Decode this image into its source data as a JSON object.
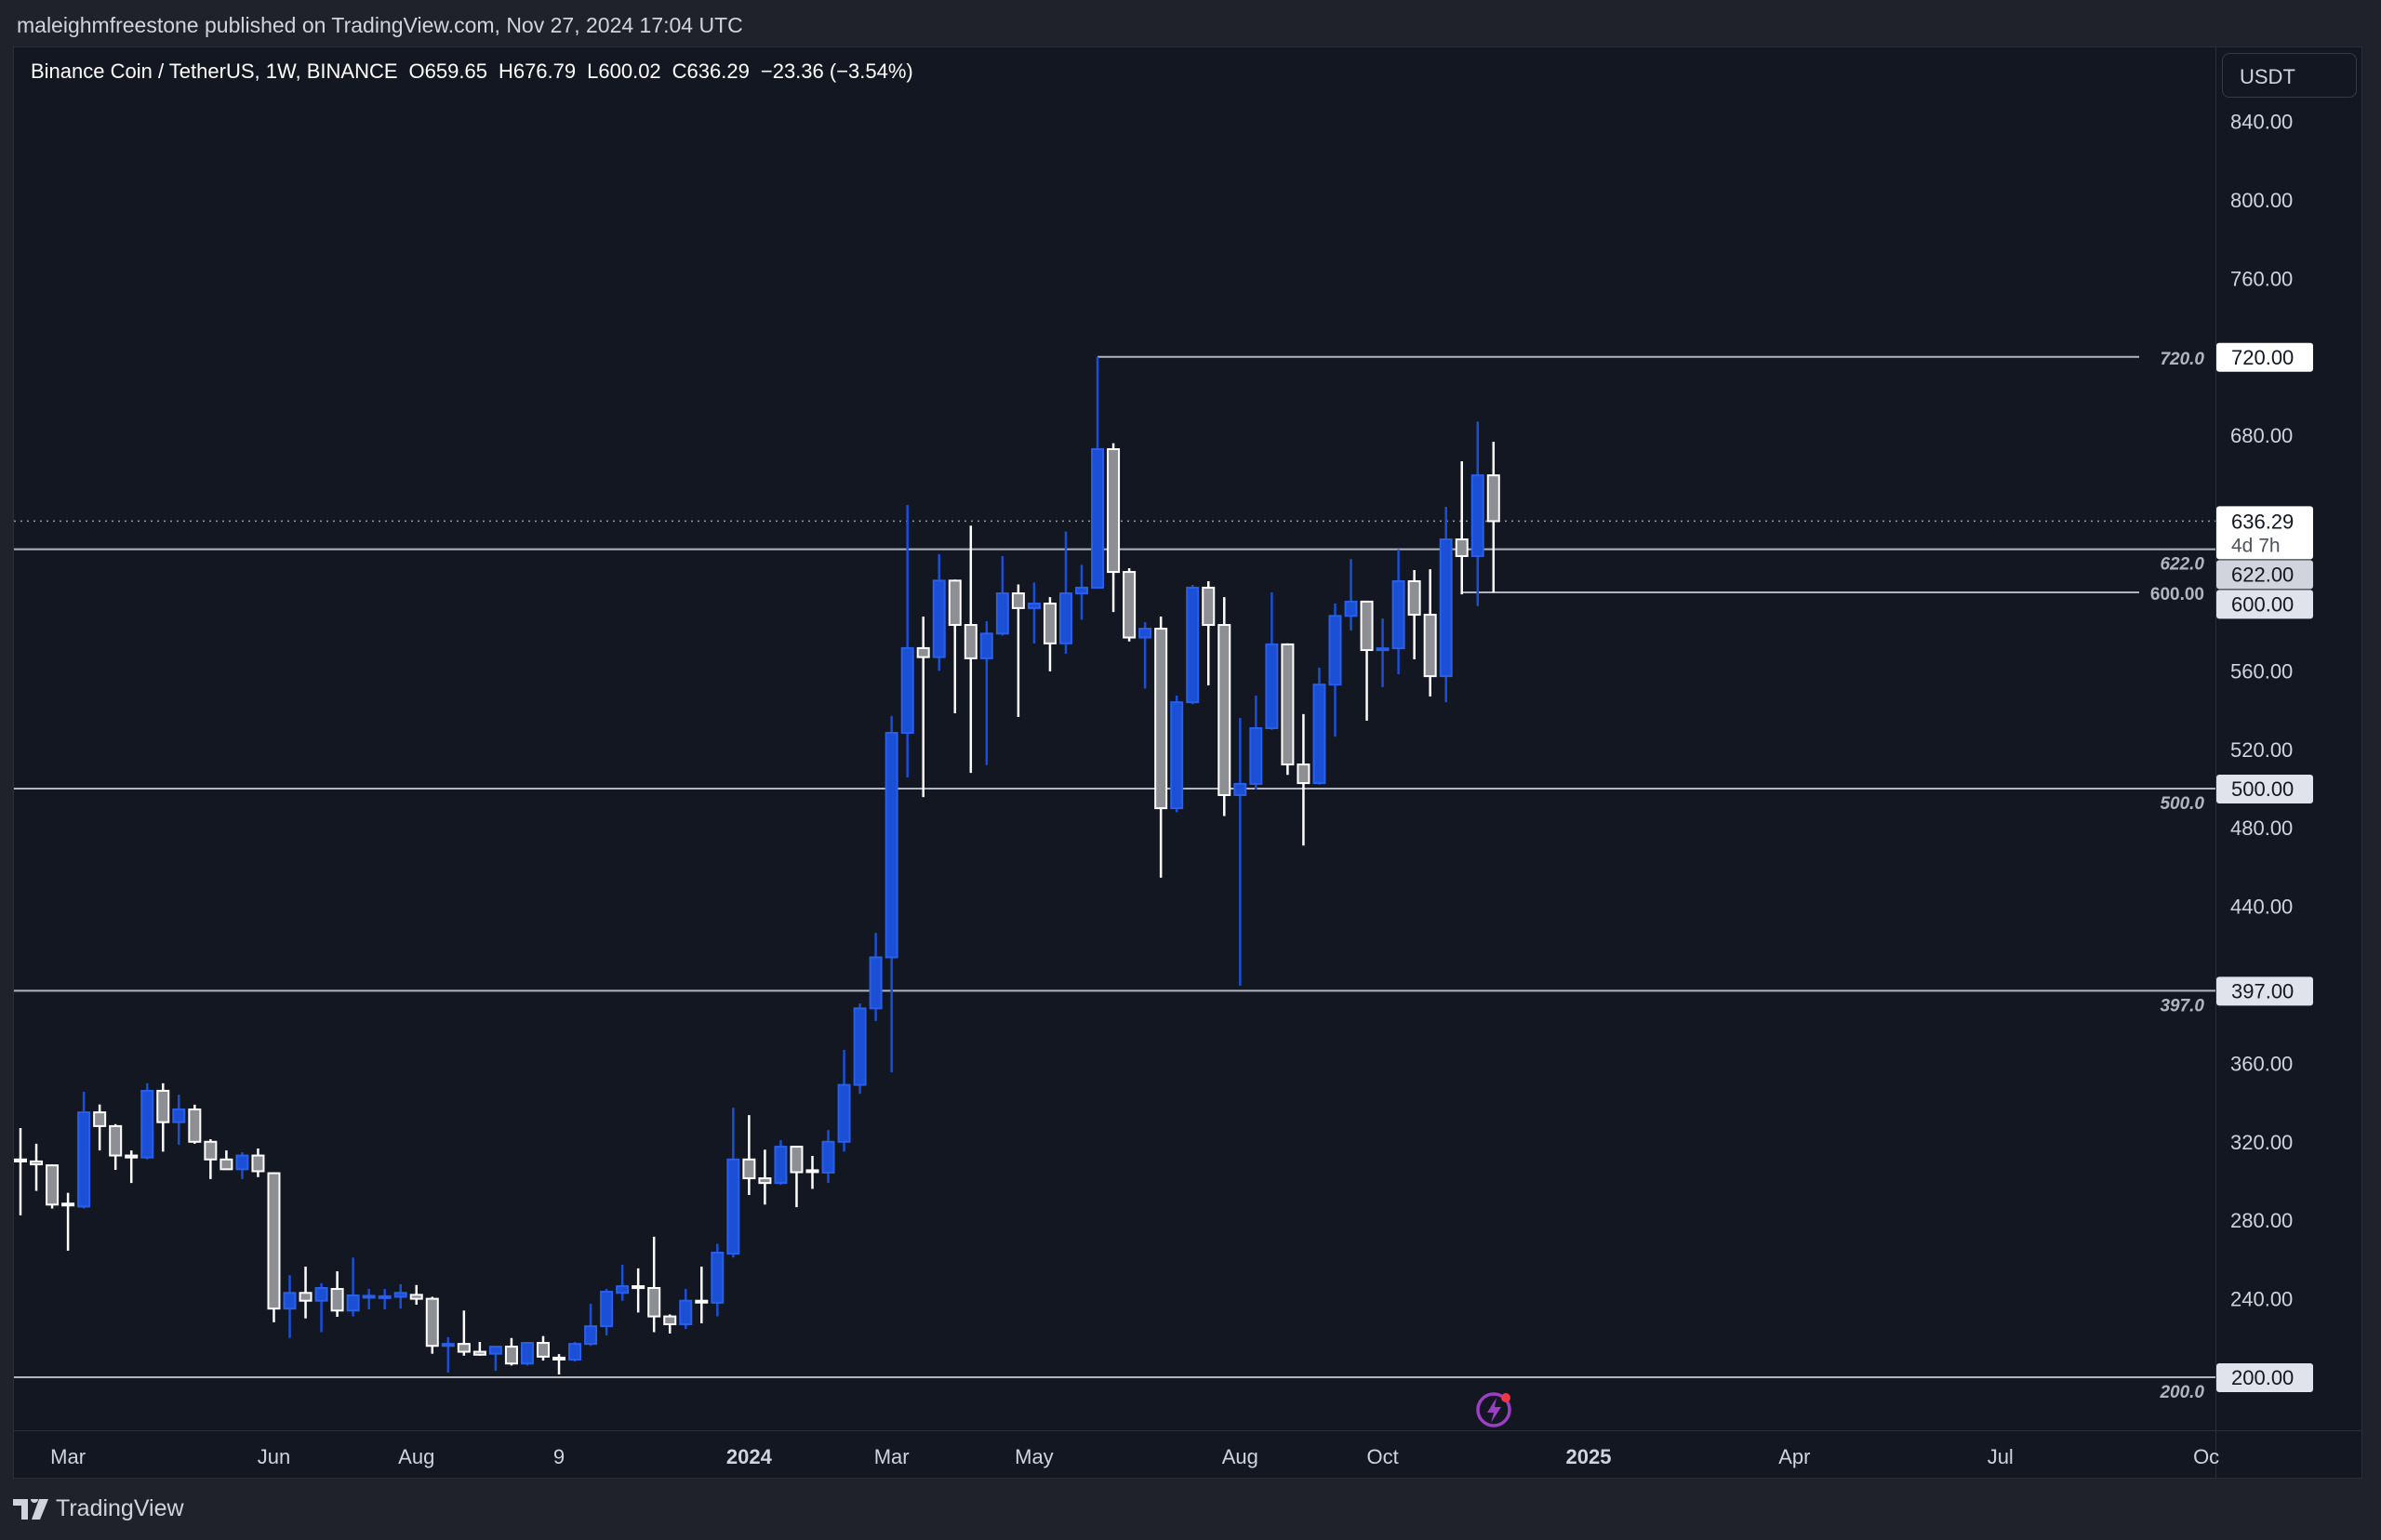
{
  "header": {
    "published": "maleighmfreestone published on TradingView.com, Nov 27, 2024 17:04 UTC"
  },
  "legend": {
    "symbol": "Binance Coin / TetherUS, 1W, BINANCE",
    "open": "O659.65",
    "high": "H676.79",
    "low": "L600.02",
    "close": "C636.29",
    "change": "−23.36 (−3.54%)"
  },
  "price_axis": {
    "currency": "USDT"
  },
  "footer": {
    "brand": "TradingView",
    "logo_icon": "tradingview-logo-icon"
  },
  "colors": {
    "up": "#1a4fd6",
    "down_fill": "#8d8f94",
    "down_stroke": "#ffffff",
    "background": "#131722",
    "level_line": "#b2b5be",
    "alert_icon": "#9c3fc4"
  },
  "icons": {
    "alert": "lightning-alert-icon"
  },
  "chart_data": {
    "type": "candlestick",
    "title": "Binance Coin / TetherUS, 1W, BINANCE",
    "interval": "1W",
    "ylim": [
      182,
      880
    ],
    "yticks": [
      "840.00",
      "800.00",
      "760.00",
      "680.00",
      "560.00",
      "520.00",
      "480.00",
      "440.00",
      "360.00",
      "320.00",
      "280.00",
      "240.00"
    ],
    "xticks": [
      {
        "label": "Mar",
        "date": "2023-03-06",
        "bold": false
      },
      {
        "label": "Jun",
        "date": "2023-06-05",
        "bold": false
      },
      {
        "label": "Aug",
        "date": "2023-08-07",
        "bold": false
      },
      {
        "label": "9",
        "date": "2023-10-09",
        "bold": false
      },
      {
        "label": "2024",
        "date": "2024-01-01",
        "bold": true
      },
      {
        "label": "Mar",
        "date": "2024-03-04",
        "bold": false
      },
      {
        "label": "May",
        "date": "2024-05-06",
        "bold": false
      },
      {
        "label": "Aug",
        "date": "2024-08-05",
        "bold": false
      },
      {
        "label": "Oct",
        "date": "2024-10-07",
        "bold": false
      },
      {
        "label": "2025",
        "date": "2025-01-06",
        "bold": true
      },
      {
        "label": "Apr",
        "date": "2025-04-07",
        "bold": false
      },
      {
        "label": "Jul",
        "date": "2025-07-07",
        "bold": false
      },
      {
        "label": "Oc",
        "date": "2025-10-06",
        "bold": false
      }
    ],
    "current_price": {
      "value": 636.29,
      "label": "636.29",
      "countdown": "4d 7h"
    },
    "levels": [
      {
        "price": 720,
        "label": "720.0",
        "badge": "720.00",
        "from": "2024-06-03",
        "style": "white"
      },
      {
        "price": 622,
        "label": "622.0",
        "badge": "622.00",
        "from": null,
        "style": "gray"
      },
      {
        "price": 600,
        "label": "600.00",
        "badge": "600.00",
        "from": "2024-11-11",
        "style": "light"
      },
      {
        "price": 500,
        "label": "500.0",
        "badge": "500.00",
        "from": null,
        "style": "light"
      },
      {
        "price": 397,
        "label": "397.0",
        "badge": "397.00",
        "from": null,
        "style": "light"
      },
      {
        "price": 200,
        "label": "200.0",
        "badge": "200.00",
        "from": null,
        "style": "light"
      }
    ],
    "columns": [
      "date",
      "open",
      "high",
      "low",
      "close"
    ],
    "candles": [
      [
        "2023-02-13",
        311,
        327,
        282.5,
        310
      ],
      [
        "2023-02-20",
        310,
        319,
        295,
        308.5
      ],
      [
        "2023-02-27",
        308,
        308.5,
        286,
        288
      ],
      [
        "2023-03-06",
        288.5,
        294,
        264.5,
        288
      ],
      [
        "2023-03-13",
        287,
        345.5,
        286,
        335
      ],
      [
        "2023-03-20",
        335,
        339,
        315.6,
        328
      ],
      [
        "2023-03-27",
        328,
        329,
        305.7,
        313
      ],
      [
        "2023-04-03",
        313,
        315.6,
        299,
        312
      ],
      [
        "2023-04-10",
        312,
        349.8,
        311,
        346
      ],
      [
        "2023-04-17",
        346,
        349.8,
        315,
        330
      ],
      [
        "2023-04-24",
        330,
        344,
        318.5,
        336.5
      ],
      [
        "2023-05-01",
        336.5,
        338.9,
        319,
        320
      ],
      [
        "2023-05-08",
        320,
        321.3,
        301,
        311
      ],
      [
        "2023-05-15",
        311,
        315.6,
        305.7,
        306
      ],
      [
        "2023-05-22",
        306,
        314.7,
        301,
        313
      ],
      [
        "2023-05-29",
        313,
        316.6,
        302,
        305
      ],
      [
        "2023-06-05",
        304,
        304.5,
        228,
        235
      ],
      [
        "2023-06-12",
        235,
        252,
        220,
        243
      ],
      [
        "2023-06-19",
        243,
        256.4,
        230,
        239
      ],
      [
        "2023-06-26",
        239,
        247.9,
        223,
        245.5
      ],
      [
        "2023-07-03",
        245,
        254,
        230.8,
        234
      ],
      [
        "2023-07-10",
        234,
        261,
        231,
        241.7
      ],
      [
        "2023-07-17",
        241,
        245,
        234.6,
        241.5
      ],
      [
        "2023-07-24",
        241,
        245,
        234.6,
        241.3
      ],
      [
        "2023-07-31",
        241,
        247.4,
        235,
        243
      ],
      [
        "2023-08-07",
        242,
        247,
        237,
        240
      ],
      [
        "2023-08-14",
        240,
        241,
        212,
        216
      ],
      [
        "2023-08-21",
        216,
        220.4,
        202.4,
        217
      ],
      [
        "2023-08-28",
        217,
        234,
        211,
        213
      ],
      [
        "2023-09-04",
        213,
        218,
        211,
        211.5
      ],
      [
        "2023-09-11",
        212,
        216,
        203.3,
        215.6
      ],
      [
        "2023-09-18",
        215.6,
        220,
        206,
        207
      ],
      [
        "2023-09-25",
        207,
        218,
        206,
        217.5
      ],
      [
        "2023-10-02",
        217.5,
        221,
        208.5,
        210.5
      ],
      [
        "2023-10-09",
        210,
        211.8,
        201.4,
        209.5
      ],
      [
        "2023-10-16",
        209,
        218,
        208,
        217
      ],
      [
        "2023-10-23",
        217,
        237.4,
        216,
        226
      ],
      [
        "2023-10-30",
        226,
        245,
        221.3,
        243.6
      ],
      [
        "2023-11-06",
        243,
        257.3,
        239,
        246.4
      ],
      [
        "2023-11-13",
        246.4,
        255.5,
        233,
        246
      ],
      [
        "2023-11-20",
        245.5,
        271.6,
        223,
        231
      ],
      [
        "2023-11-27",
        231,
        232,
        222.3,
        227
      ],
      [
        "2023-12-04",
        227,
        245,
        224.6,
        239
      ],
      [
        "2023-12-11",
        239,
        256.4,
        227.5,
        238.5
      ],
      [
        "2023-12-18",
        238,
        268,
        231,
        263.5
      ],
      [
        "2023-12-25",
        263,
        337.4,
        261,
        311
      ],
      [
        "2024-01-01",
        311,
        333.6,
        292.9,
        301.4
      ],
      [
        "2024-01-08",
        301.4,
        316,
        288,
        299
      ],
      [
        "2024-01-15",
        299,
        320.8,
        298,
        317.5
      ],
      [
        "2024-01-22",
        317.5,
        318,
        286.7,
        304.5
      ],
      [
        "2024-01-29",
        305.5,
        312.8,
        296,
        305
      ],
      [
        "2024-02-05",
        304.3,
        326,
        299,
        320
      ],
      [
        "2024-02-12",
        320,
        366.8,
        315,
        349
      ],
      [
        "2024-02-19",
        349,
        390.5,
        344.5,
        388
      ],
      [
        "2024-02-26",
        388,
        426.5,
        381.5,
        414
      ],
      [
        "2024-03-04",
        414,
        537,
        355.4,
        528.4
      ],
      [
        "2024-03-11",
        528.4,
        644.5,
        505.7,
        571.6
      ],
      [
        "2024-03-18",
        571.6,
        587.7,
        495.7,
        567
      ],
      [
        "2024-03-25",
        567,
        619.5,
        560,
        606
      ],
      [
        "2024-04-01",
        606,
        606.5,
        538.4,
        583.4
      ],
      [
        "2024-04-08",
        583.4,
        634,
        508,
        566.4
      ],
      [
        "2024-04-15",
        566.4,
        585.3,
        512,
        579
      ],
      [
        "2024-04-22",
        579,
        618.5,
        578,
        599.5
      ],
      [
        "2024-04-29",
        599.5,
        604,
        536.5,
        592
      ],
      [
        "2024-05-06",
        592,
        605,
        574,
        594.3
      ],
      [
        "2024-05-13",
        594.3,
        597.6,
        559.7,
        574
      ],
      [
        "2024-05-20",
        574,
        631,
        568.7,
        599.5
      ],
      [
        "2024-05-27",
        599.5,
        614,
        586,
        602.4
      ],
      [
        "2024-06-03",
        602.4,
        720,
        602,
        673
      ],
      [
        "2024-06-10",
        673,
        676,
        590,
        610.4
      ],
      [
        "2024-06-17",
        610.4,
        612.3,
        575,
        577
      ],
      [
        "2024-06-24",
        577,
        584.8,
        551,
        581.5
      ],
      [
        "2024-07-01",
        581.5,
        587.7,
        454.6,
        490
      ],
      [
        "2024-07-08",
        490,
        547.4,
        488,
        544
      ],
      [
        "2024-07-15",
        544,
        603.8,
        543,
        602.4
      ],
      [
        "2024-07-22",
        602.4,
        605.7,
        552.6,
        583.4
      ],
      [
        "2024-07-29",
        583.4,
        597.6,
        486,
        496.7
      ],
      [
        "2024-08-05",
        496.7,
        536,
        399.5,
        502.4
      ],
      [
        "2024-08-12",
        502.4,
        547.4,
        499.5,
        530.8
      ],
      [
        "2024-08-19",
        530.8,
        600,
        530,
        573.5
      ],
      [
        "2024-08-26",
        573.5,
        574,
        507,
        512.3
      ],
      [
        "2024-09-02",
        512.3,
        538,
        471,
        502.8
      ],
      [
        "2024-09-09",
        502.8,
        561.6,
        502,
        553
      ],
      [
        "2024-09-16",
        553,
        594.3,
        526.5,
        588
      ],
      [
        "2024-09-23",
        588,
        617,
        580.6,
        595.3
      ],
      [
        "2024-09-30",
        595.3,
        595.5,
        534.6,
        570.6
      ],
      [
        "2024-10-07",
        570.6,
        586.7,
        551.7,
        571.5
      ],
      [
        "2024-10-14",
        571.5,
        622,
        558.3,
        605.7
      ],
      [
        "2024-10-21",
        605.7,
        611.4,
        565.9,
        588.6
      ],
      [
        "2024-10-28",
        588.6,
        611.8,
        547,
        557.3
      ],
      [
        "2024-11-04",
        557.3,
        643.6,
        544,
        627
      ],
      [
        "2024-11-11",
        627,
        666.8,
        599,
        618.5
      ],
      [
        "2024-11-18",
        618.5,
        687,
        593,
        659.65
      ],
      [
        "2024-11-25",
        659.65,
        676.79,
        600.02,
        636.29
      ]
    ]
  }
}
